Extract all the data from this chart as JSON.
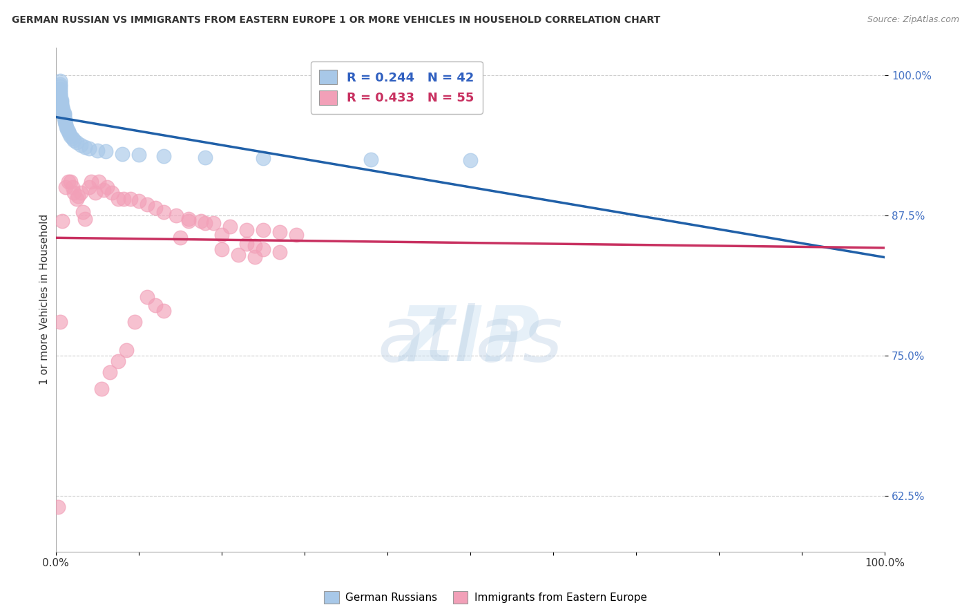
{
  "title": "GERMAN RUSSIAN VS IMMIGRANTS FROM EASTERN EUROPE 1 OR MORE VEHICLES IN HOUSEHOLD CORRELATION CHART",
  "source": "Source: ZipAtlas.com",
  "ylabel": "1 or more Vehicles in Household",
  "xlim": [
    0.0,
    1.0
  ],
  "ylim": [
    0.575,
    1.025
  ],
  "yticks": [
    0.625,
    0.75,
    0.875,
    1.0
  ],
  "ytick_labels": [
    "62.5%",
    "75.0%",
    "87.5%",
    "100.0%"
  ],
  "blue_R": 0.244,
  "blue_N": 42,
  "pink_R": 0.433,
  "pink_N": 55,
  "blue_color": "#a8c8e8",
  "pink_color": "#f2a0b8",
  "blue_line_color": "#2060a8",
  "pink_line_color": "#c83060",
  "legend_text_blue": "#3060c0",
  "legend_text_pink": "#c83060",
  "background_color": "#ffffff",
  "blue_x": [
    0.005,
    0.005,
    0.005,
    0.005,
    0.005,
    0.005,
    0.005,
    0.005,
    0.007,
    0.007,
    0.007,
    0.008,
    0.008,
    0.009,
    0.009,
    0.01,
    0.01,
    0.01,
    0.01,
    0.011,
    0.011,
    0.012,
    0.013,
    0.014,
    0.015,
    0.016,
    0.018,
    0.02,
    0.022,
    0.025,
    0.03,
    0.035,
    0.04,
    0.05,
    0.06,
    0.08,
    0.1,
    0.13,
    0.18,
    0.25,
    0.38,
    0.5
  ],
  "blue_y": [
    0.995,
    0.992,
    0.99,
    0.988,
    0.985,
    0.983,
    0.982,
    0.98,
    0.978,
    0.976,
    0.974,
    0.972,
    0.97,
    0.969,
    0.967,
    0.966,
    0.965,
    0.963,
    0.962,
    0.96,
    0.958,
    0.956,
    0.954,
    0.952,
    0.95,
    0.948,
    0.946,
    0.944,
    0.942,
    0.94,
    0.938,
    0.936,
    0.935,
    0.933,
    0.932,
    0.93,
    0.929,
    0.928,
    0.927,
    0.926,
    0.925,
    0.924
  ],
  "pink_x": [
    0.003,
    0.008,
    0.012,
    0.015,
    0.018,
    0.02,
    0.022,
    0.025,
    0.027,
    0.03,
    0.033,
    0.035,
    0.04,
    0.043,
    0.048,
    0.052,
    0.058,
    0.062,
    0.068,
    0.075,
    0.082,
    0.09,
    0.1,
    0.11,
    0.12,
    0.13,
    0.145,
    0.16,
    0.175,
    0.19,
    0.21,
    0.23,
    0.25,
    0.27,
    0.29,
    0.2,
    0.22,
    0.24,
    0.16,
    0.18,
    0.15,
    0.2,
    0.23,
    0.24,
    0.25,
    0.27,
    0.11,
    0.12,
    0.13,
    0.095,
    0.085,
    0.075,
    0.065,
    0.055,
    0.005
  ],
  "pink_y": [
    0.615,
    0.87,
    0.9,
    0.905,
    0.905,
    0.9,
    0.895,
    0.89,
    0.892,
    0.895,
    0.878,
    0.872,
    0.9,
    0.905,
    0.895,
    0.905,
    0.898,
    0.9,
    0.895,
    0.89,
    0.89,
    0.89,
    0.888,
    0.885,
    0.882,
    0.878,
    0.875,
    0.872,
    0.87,
    0.868,
    0.865,
    0.862,
    0.862,
    0.86,
    0.858,
    0.845,
    0.84,
    0.838,
    0.87,
    0.868,
    0.855,
    0.858,
    0.85,
    0.848,
    0.845,
    0.842,
    0.802,
    0.795,
    0.79,
    0.78,
    0.755,
    0.745,
    0.735,
    0.72,
    0.78
  ]
}
